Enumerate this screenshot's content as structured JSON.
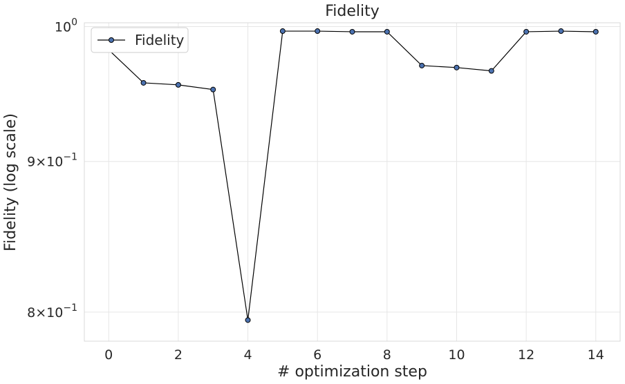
{
  "chart_data": {
    "type": "line",
    "title": "Fidelity",
    "xlabel": "# optimization step",
    "ylabel": "Fidelity (log scale)",
    "y_scale": "log",
    "grid": true,
    "legend_position": "top-left",
    "xlim": [
      -0.7,
      14.7
    ],
    "ylim": [
      0.782,
      1.003
    ],
    "x_ticks": [
      0,
      2,
      4,
      6,
      8,
      10,
      12,
      14
    ],
    "x_tick_labels": [
      "0",
      "2",
      "4",
      "6",
      "8",
      "10",
      "12",
      "14"
    ],
    "y_ticks": [
      {
        "value": 1.0,
        "base": "10",
        "exponent": "0",
        "coefficient": ""
      },
      {
        "value": 0.9,
        "base": "10",
        "exponent": "−1",
        "coefficient": "9"
      },
      {
        "value": 0.8,
        "base": "10",
        "exponent": "−1",
        "coefficient": "8"
      }
    ],
    "series": [
      {
        "name": "Fidelity",
        "line_color": "#000000",
        "marker_color": "#4c72b0",
        "x": [
          0,
          1,
          2,
          3,
          4,
          5,
          6,
          7,
          8,
          9,
          10,
          11,
          12,
          13,
          14
        ],
        "values": [
          0.982,
          0.957,
          0.9555,
          0.952,
          0.795,
          0.9965,
          0.9965,
          0.996,
          0.996,
          0.97,
          0.9685,
          0.966,
          0.996,
          0.9965,
          0.996
        ]
      }
    ]
  }
}
